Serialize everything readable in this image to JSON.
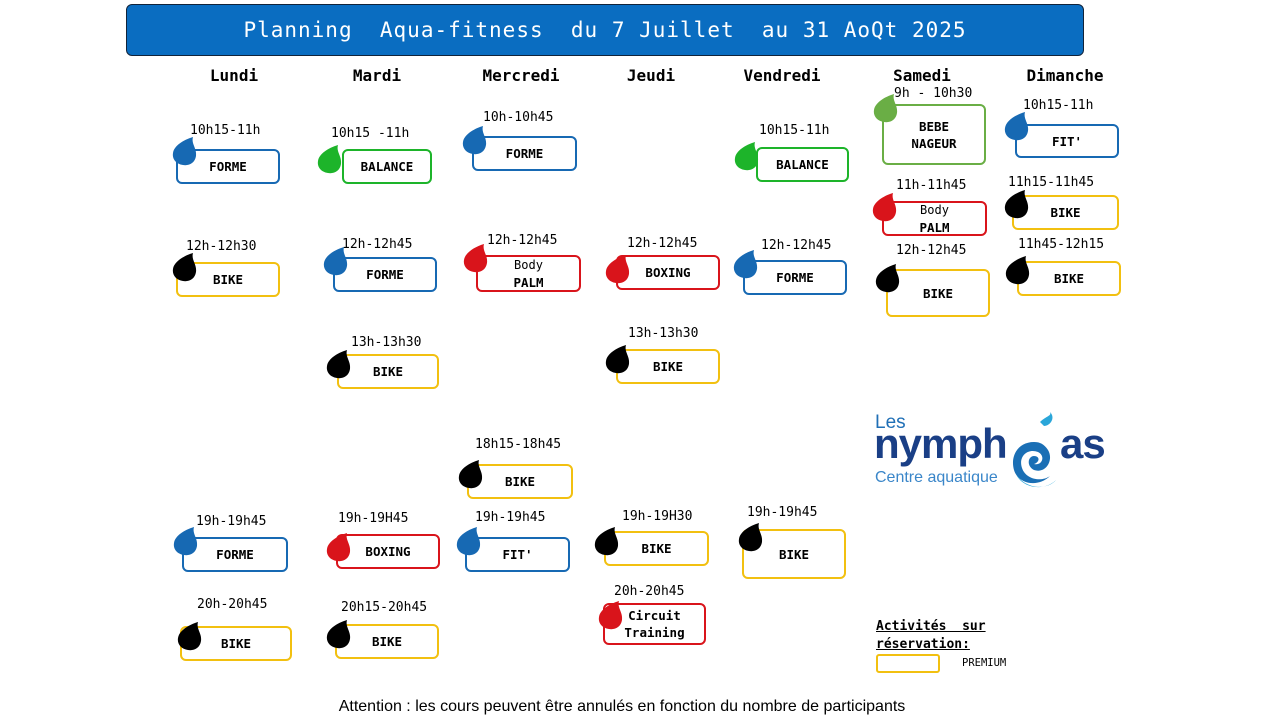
{
  "title": "Planning  Aqua-fitness  du 7 Juillet  au 31 AoQt 2025",
  "days": [
    "Lundi",
    "Mardi",
    "Mercredi",
    "Jeudi",
    "Vendredi",
    "Samedi",
    "Dimanche"
  ],
  "classes": [
    {
      "time": "10h15-11h",
      "label": "FORME",
      "color": "blue"
    },
    {
      "time": "12h-12h30",
      "label": "BIKE",
      "color": "yellow"
    },
    {
      "time": "19h-19h45",
      "label": "FORME",
      "color": "blue"
    },
    {
      "time": "20h-20h45",
      "label": "BIKE",
      "color": "yellow"
    },
    {
      "time": "10h15 -11h",
      "label": "BALANCE",
      "color": "green"
    },
    {
      "time": "12h-12h45",
      "label": "FORME",
      "color": "blue"
    },
    {
      "time": "13h-13h30",
      "label": "BIKE",
      "color": "yellow"
    },
    {
      "time": "19h-19H45",
      "label": "BOXING",
      "color": "red"
    },
    {
      "time": "20h15-20h45",
      "label": "BIKE",
      "color": "yellow"
    },
    {
      "time": "10h-10h45",
      "label": "FORME",
      "color": "blue"
    },
    {
      "time": "12h-12h45",
      "label_top": "Body",
      "label": "PALM",
      "color": "red"
    },
    {
      "time": "18h15-18h45",
      "label": "BIKE",
      "color": "yellow"
    },
    {
      "time": "19h-19h45",
      "label": "FIT'",
      "color": "blue"
    },
    {
      "time": "12h-12h45",
      "label": "BOXING",
      "color": "red"
    },
    {
      "time": "13h-13h30",
      "label": "BIKE",
      "color": "yellow"
    },
    {
      "time": "19h-19H30",
      "label": "BIKE",
      "color": "yellow"
    },
    {
      "time": "20h-20h45",
      "label_top": "Circuit",
      "label": "Training",
      "color": "red"
    },
    {
      "time": "10h15-11h",
      "label": "BALANCE",
      "color": "green"
    },
    {
      "time": "12h-12h45",
      "label": "FORME",
      "color": "blue"
    },
    {
      "time": "19h-19h45",
      "label": "BIKE",
      "color": "yellow"
    },
    {
      "time": "9h - 10h30",
      "label_top": "BEBE",
      "label": "NAGEUR",
      "color": "olive"
    },
    {
      "time": "11h-11h45",
      "label_top": "Body",
      "label": "PALM",
      "color": "red"
    },
    {
      "time": "12h-12h45",
      "label": "BIKE",
      "color": "yellow"
    },
    {
      "time": "10h15-11h",
      "label": "FIT'",
      "color": "blue"
    },
    {
      "time": "11h15-11h45",
      "label": "BIKE",
      "color": "yellow"
    },
    {
      "time": "11h45-12h15",
      "label": "BIKE",
      "color": "yellow"
    }
  ],
  "logo": {
    "line1": "Les",
    "word_start": "nymph",
    "word_end": "as",
    "subtitle": "Centre aquatique"
  },
  "legend": {
    "title_line1": "Activités  sur",
    "title_line2": "réservation:",
    "premium": "PREMIUM"
  },
  "footer": "Attention : les cours peuvent être annulés en fonction du nombre de participants",
  "colors": {
    "blue": "#1769b3",
    "green": "#1db42a",
    "yellow": "#f2c010",
    "red": "#d9141b",
    "olive": "#6aae45",
    "black": "#000000",
    "banner": "#0a6dc1"
  }
}
